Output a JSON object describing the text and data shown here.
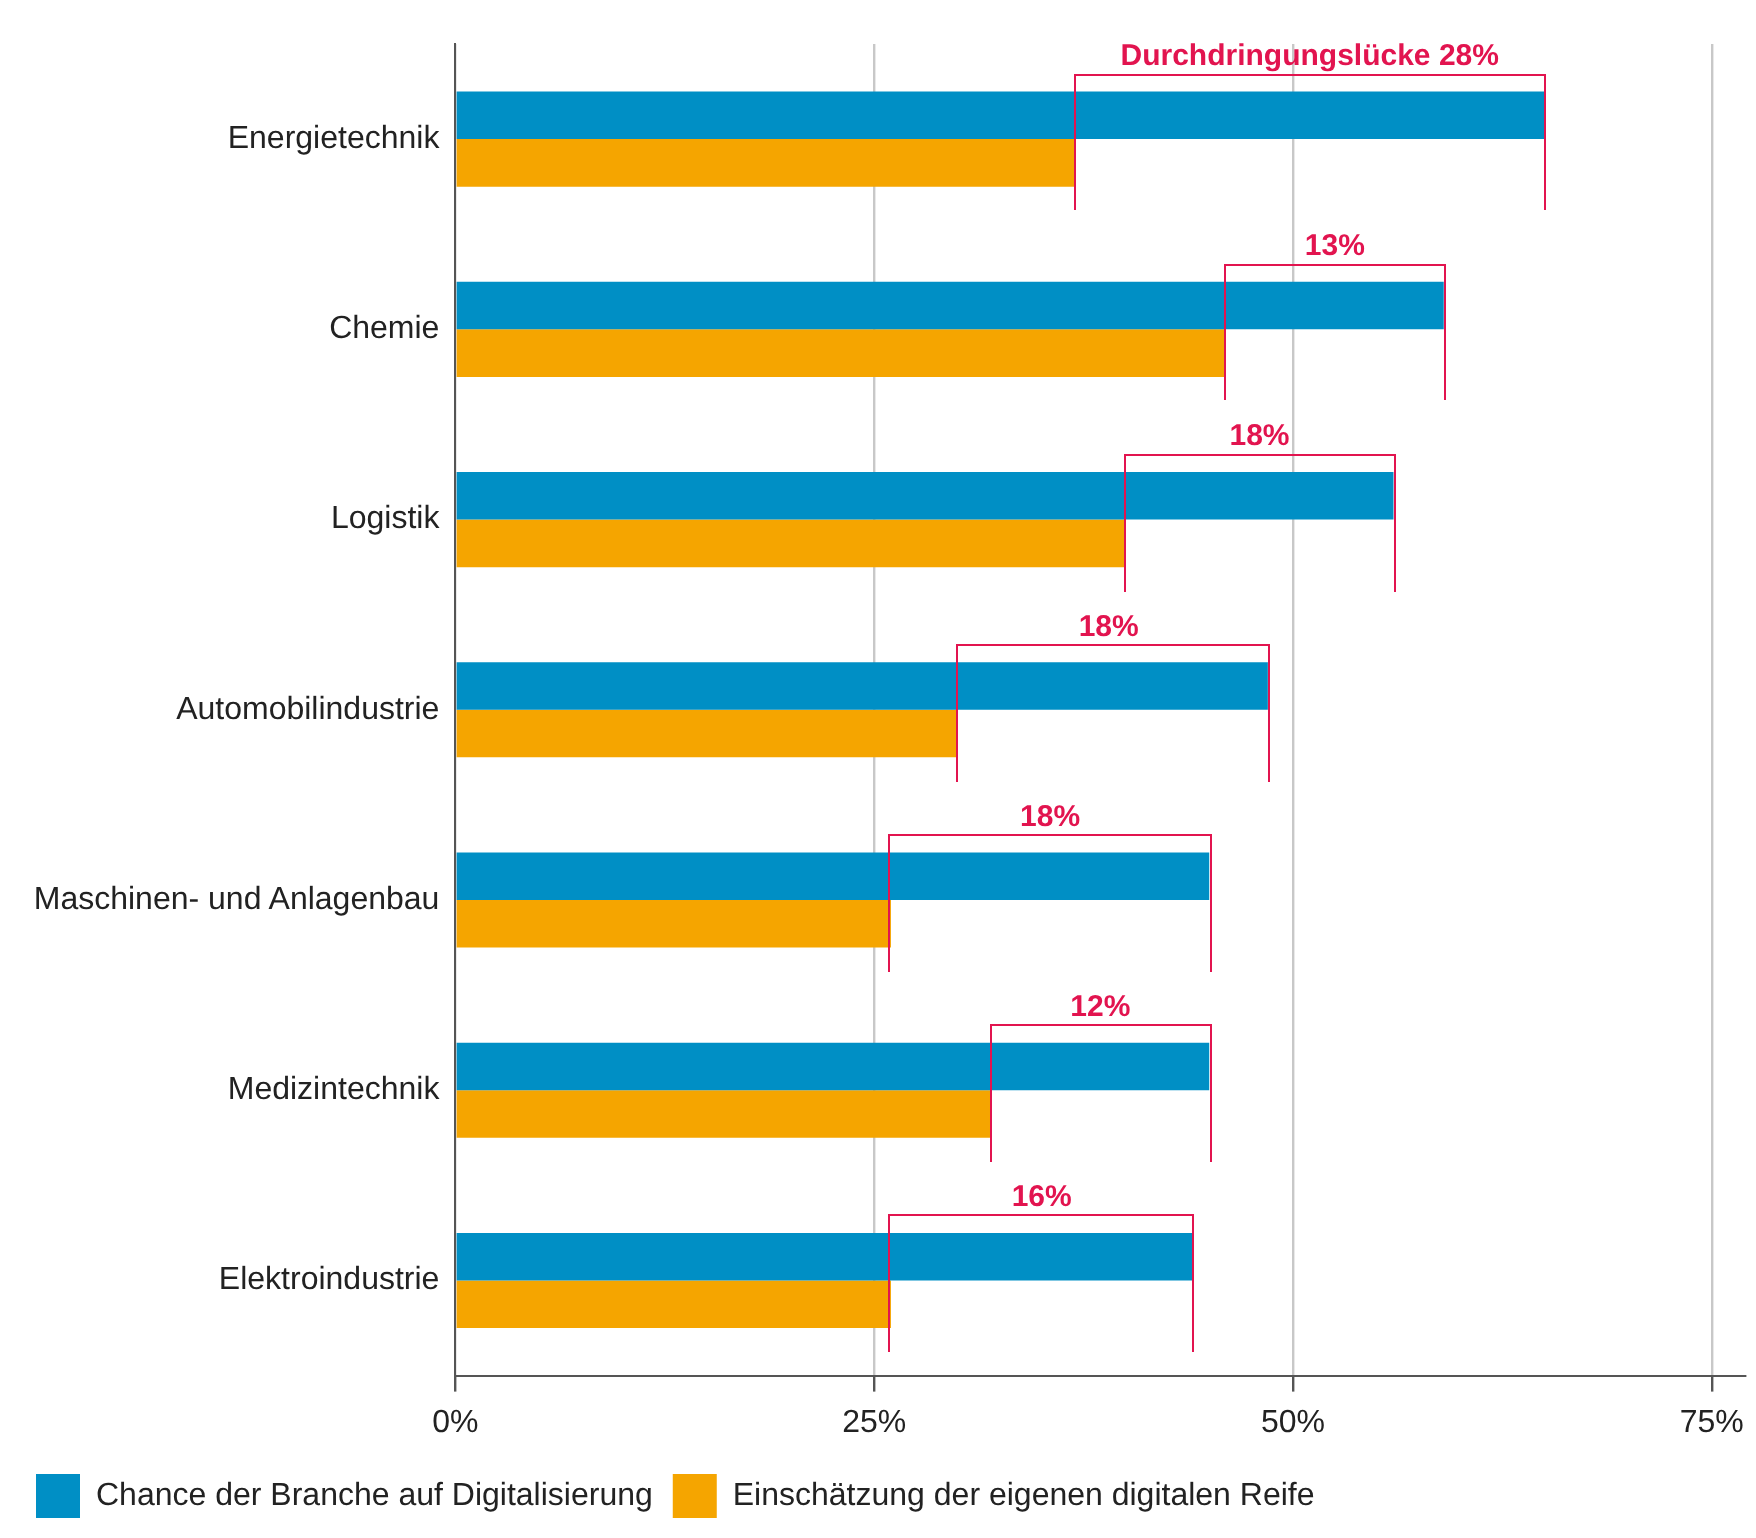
{
  "chart_data": {
    "type": "bar",
    "orientation": "horizontal",
    "categories": [
      "Energietechnik",
      "Chemie",
      "Logistik",
      "Automobilindustrie",
      "Maschinen- und Anlagenbau",
      "Medizintechnik",
      "Elektroindustrie"
    ],
    "series": [
      {
        "name": "Chance der Branche auf Digitalisierung",
        "color": "#008fc5",
        "values": [
          65,
          59,
          56,
          48.5,
          45,
          45,
          44
        ]
      },
      {
        "name": "Einschätzung der eigenen digitalen Reife",
        "color": "#f5a500",
        "values": [
          37,
          46,
          40,
          30,
          26,
          32,
          26
        ]
      }
    ],
    "xlim": [
      0,
      77
    ],
    "xticks": [
      {
        "value": 0,
        "label": "0%"
      },
      {
        "value": 25,
        "label": "25%"
      },
      {
        "value": 50,
        "label": "50%"
      },
      {
        "value": 75,
        "label": "75%"
      }
    ],
    "grid": "x",
    "legend": "bottom",
    "annotations": [
      {
        "text": "Durchdringungslücke 28%",
        "x": 51,
        "y": "Energietechnik"
      },
      {
        "text": "13%",
        "x": 52.5,
        "y": "Chemie"
      },
      {
        "text": "18%",
        "x": 48,
        "y": "Logistik"
      },
      {
        "text": "18%",
        "x": 39,
        "y": "Automobilindustrie"
      },
      {
        "text": "18%",
        "x": 35.5,
        "y": "Maschinen- und Anlagenbau"
      },
      {
        "text": "12%",
        "x": 38.5,
        "y": "Medizintechnik"
      },
      {
        "text": "16%",
        "x": 35,
        "y": "Elektroindustrie"
      }
    ]
  }
}
